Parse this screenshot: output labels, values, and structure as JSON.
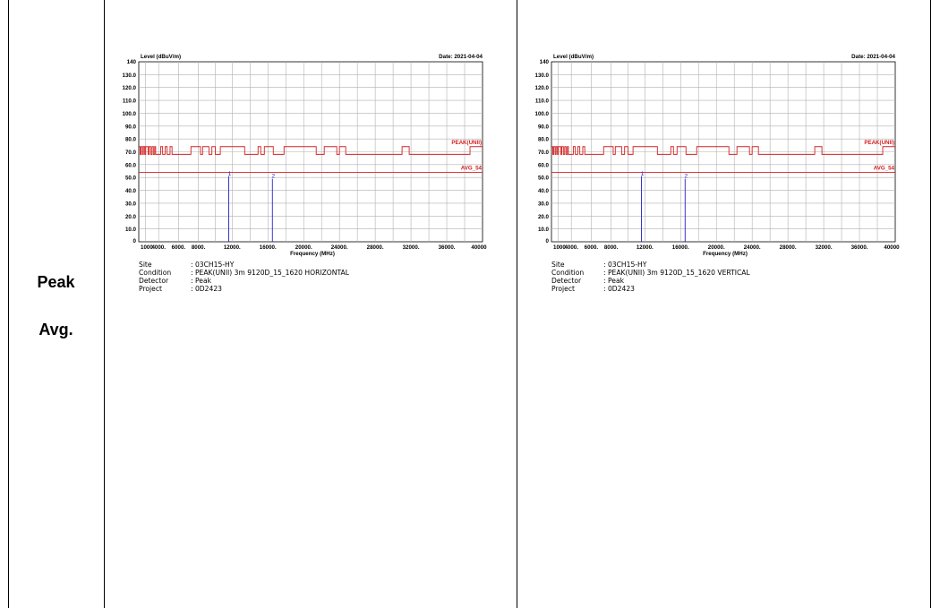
{
  "labels": {
    "peak": "Peak",
    "avg": "Avg."
  },
  "charts": [
    {
      "date_label": "Date: 2021-04-04",
      "ylabel": "Level (dBuV/m)",
      "xlabel": "Frequency (MHz)",
      "info": [
        {
          "key": "Site",
          "value": ": 03CH15-HY"
        },
        {
          "key": "Condition",
          "value": ": PEAK(UNII) 3m 9120D_15_1620 HORIZONTAL"
        },
        {
          "key": "Detector",
          "value": ": Peak"
        },
        {
          "key": "Project",
          "value": ": 0D2423"
        }
      ]
    },
    {
      "date_label": "Date: 2021-04-04",
      "ylabel": "Level (dBuV/m)",
      "xlabel": "Frequency (MHz)",
      "info": [
        {
          "key": "Site",
          "value": ": 03CH15-HY"
        },
        {
          "key": "Condition",
          "value": ": PEAK(UNII) 3m 9120D_15_1620 VERTICAL"
        },
        {
          "key": "Detector",
          "value": ": Peak"
        },
        {
          "key": "Project",
          "value": ": 0D2423"
        }
      ]
    }
  ],
  "chart_data": [
    {
      "type": "line",
      "title": "",
      "xlabel": "Frequency (MHz)",
      "ylabel": "Level (dBuV/m)",
      "xlim": [
        1000,
        40000
      ],
      "ylim": [
        0,
        140
      ],
      "grid": true,
      "x_ticks": [
        "1000",
        "4000.",
        "6000.",
        "8000.",
        "12000.",
        "16000.",
        "20000.",
        "24000.",
        "28000.",
        "32000.",
        "36000.",
        "40000"
      ],
      "y_ticks": [
        "0",
        "10.0",
        "20.0",
        "30.0",
        "40.0",
        "50.0",
        "60.0",
        "70.0",
        "80.0",
        "90.0",
        "100.0",
        "110.0",
        "120.0",
        "130.0",
        "140"
      ],
      "color_limit": "#d42020",
      "color_marker": "#2020c8",
      "limit_lines": [
        {
          "name": "PEAK(UNII)",
          "points": [
            [
              1000,
              74
            ],
            [
              1200,
              74
            ],
            [
              1200,
              68
            ],
            [
              1350,
              68
            ],
            [
              1350,
              74
            ],
            [
              1550,
              74
            ],
            [
              1550,
              68
            ],
            [
              1700,
              68
            ],
            [
              1700,
              74
            ],
            [
              1900,
              74
            ],
            [
              1900,
              68
            ],
            [
              2050,
              68
            ],
            [
              2050,
              74
            ],
            [
              2400,
              74
            ],
            [
              2400,
              68
            ],
            [
              2550,
              68
            ],
            [
              2550,
              74
            ],
            [
              2800,
              74
            ],
            [
              2800,
              68
            ],
            [
              3000,
              68
            ],
            [
              3000,
              74
            ],
            [
              3200,
              74
            ],
            [
              3200,
              68
            ],
            [
              3400,
              68
            ],
            [
              3400,
              74
            ],
            [
              3550,
              74
            ],
            [
              3550,
              68
            ],
            [
              4200,
              68
            ],
            [
              4200,
              74
            ],
            [
              4400,
              74
            ],
            [
              4400,
              68
            ],
            [
              4650,
              68
            ],
            [
              4650,
              74
            ],
            [
              4850,
              74
            ],
            [
              4850,
              68
            ],
            [
              5150,
              68
            ],
            [
              5150,
              74
            ],
            [
              5350,
              74
            ],
            [
              5350,
              68
            ],
            [
              7250,
              68
            ],
            [
              7250,
              74
            ],
            [
              8250,
              74
            ],
            [
              8250,
              68
            ],
            [
              8500,
              68
            ],
            [
              8500,
              74
            ],
            [
              9250,
              74
            ],
            [
              9250,
              68
            ],
            [
              9600,
              68
            ],
            [
              9600,
              74
            ],
            [
              10000,
              74
            ],
            [
              10000,
              68
            ],
            [
              10600,
              68
            ],
            [
              10600,
              74
            ],
            [
              13400,
              74
            ],
            [
              13400,
              68
            ],
            [
              14900,
              68
            ],
            [
              14900,
              74
            ],
            [
              15200,
              74
            ],
            [
              15200,
              68
            ],
            [
              15600,
              68
            ],
            [
              15600,
              74
            ],
            [
              16600,
              74
            ],
            [
              16600,
              68
            ],
            [
              17800,
              68
            ],
            [
              17800,
              74
            ],
            [
              21400,
              74
            ],
            [
              21400,
              68
            ],
            [
              22300,
              68
            ],
            [
              22300,
              74
            ],
            [
              23700,
              74
            ],
            [
              23700,
              68
            ],
            [
              24000,
              68
            ],
            [
              24000,
              74
            ],
            [
              24700,
              74
            ],
            [
              24700,
              68
            ],
            [
              31000,
              68
            ],
            [
              31000,
              74
            ],
            [
              31800,
              74
            ],
            [
              31800,
              68
            ],
            [
              38600,
              68
            ],
            [
              38600,
              74
            ],
            [
              40000,
              74
            ]
          ]
        },
        {
          "name": "AVG_54",
          "points": [
            [
              1000,
              54
            ],
            [
              40000,
              54
            ]
          ]
        }
      ],
      "markers": [
        {
          "label": "1",
          "x": 11600,
          "y": 51
        },
        {
          "label": "2",
          "x": 16500,
          "y": 49
        }
      ]
    },
    {
      "type": "line",
      "title": "",
      "xlabel": "Frequency (MHz)",
      "ylabel": "Level (dBuV/m)",
      "xlim": [
        1000,
        40000
      ],
      "ylim": [
        0,
        140
      ],
      "grid": true,
      "x_ticks": [
        "1000",
        "4000.",
        "6000.",
        "8000.",
        "12000.",
        "16000.",
        "20000.",
        "24000.",
        "28000.",
        "32000.",
        "36000.",
        "40000"
      ],
      "y_ticks": [
        "0",
        "10.0",
        "20.0",
        "30.0",
        "40.0",
        "50.0",
        "60.0",
        "70.0",
        "80.0",
        "90.0",
        "100.0",
        "110.0",
        "120.0",
        "130.0",
        "140"
      ],
      "color_limit": "#d42020",
      "color_marker": "#2020c8",
      "limit_lines": [
        {
          "name": "PEAK(UNII)",
          "points": [
            [
              1000,
              74
            ],
            [
              1200,
              74
            ],
            [
              1200,
              68
            ],
            [
              1350,
              68
            ],
            [
              1350,
              74
            ],
            [
              1550,
              74
            ],
            [
              1550,
              68
            ],
            [
              1700,
              68
            ],
            [
              1700,
              74
            ],
            [
              1900,
              74
            ],
            [
              1900,
              68
            ],
            [
              2050,
              68
            ],
            [
              2050,
              74
            ],
            [
              2400,
              74
            ],
            [
              2400,
              68
            ],
            [
              2550,
              68
            ],
            [
              2550,
              74
            ],
            [
              2800,
              74
            ],
            [
              2800,
              68
            ],
            [
              3000,
              68
            ],
            [
              3000,
              74
            ],
            [
              3200,
              74
            ],
            [
              3200,
              68
            ],
            [
              3400,
              68
            ],
            [
              3400,
              74
            ],
            [
              3550,
              74
            ],
            [
              3550,
              68
            ],
            [
              4200,
              68
            ],
            [
              4200,
              74
            ],
            [
              4400,
              74
            ],
            [
              4400,
              68
            ],
            [
              4650,
              68
            ],
            [
              4650,
              74
            ],
            [
              4850,
              74
            ],
            [
              4850,
              68
            ],
            [
              5150,
              68
            ],
            [
              5150,
              74
            ],
            [
              5350,
              74
            ],
            [
              5350,
              68
            ],
            [
              7250,
              68
            ],
            [
              7250,
              74
            ],
            [
              8250,
              74
            ],
            [
              8250,
              68
            ],
            [
              8500,
              68
            ],
            [
              8500,
              74
            ],
            [
              9250,
              74
            ],
            [
              9250,
              68
            ],
            [
              9600,
              68
            ],
            [
              9600,
              74
            ],
            [
              10000,
              74
            ],
            [
              10000,
              68
            ],
            [
              10600,
              68
            ],
            [
              10600,
              74
            ],
            [
              13400,
              74
            ],
            [
              13400,
              68
            ],
            [
              14900,
              68
            ],
            [
              14900,
              74
            ],
            [
              15200,
              74
            ],
            [
              15200,
              68
            ],
            [
              15600,
              68
            ],
            [
              15600,
              74
            ],
            [
              16600,
              74
            ],
            [
              16600,
              68
            ],
            [
              17800,
              68
            ],
            [
              17800,
              74
            ],
            [
              21400,
              74
            ],
            [
              21400,
              68
            ],
            [
              22300,
              68
            ],
            [
              22300,
              74
            ],
            [
              23700,
              74
            ],
            [
              23700,
              68
            ],
            [
              24000,
              68
            ],
            [
              24000,
              74
            ],
            [
              24700,
              74
            ],
            [
              24700,
              68
            ],
            [
              31000,
              68
            ],
            [
              31000,
              74
            ],
            [
              31800,
              74
            ],
            [
              31800,
              68
            ],
            [
              38600,
              68
            ],
            [
              38600,
              74
            ],
            [
              40000,
              74
            ]
          ]
        },
        {
          "name": "AVG_54",
          "points": [
            [
              1000,
              54
            ],
            [
              40000,
              54
            ]
          ]
        }
      ],
      "markers": [
        {
          "label": "1",
          "x": 11600,
          "y": 51
        },
        {
          "label": "2",
          "x": 16500,
          "y": 49
        }
      ]
    }
  ]
}
